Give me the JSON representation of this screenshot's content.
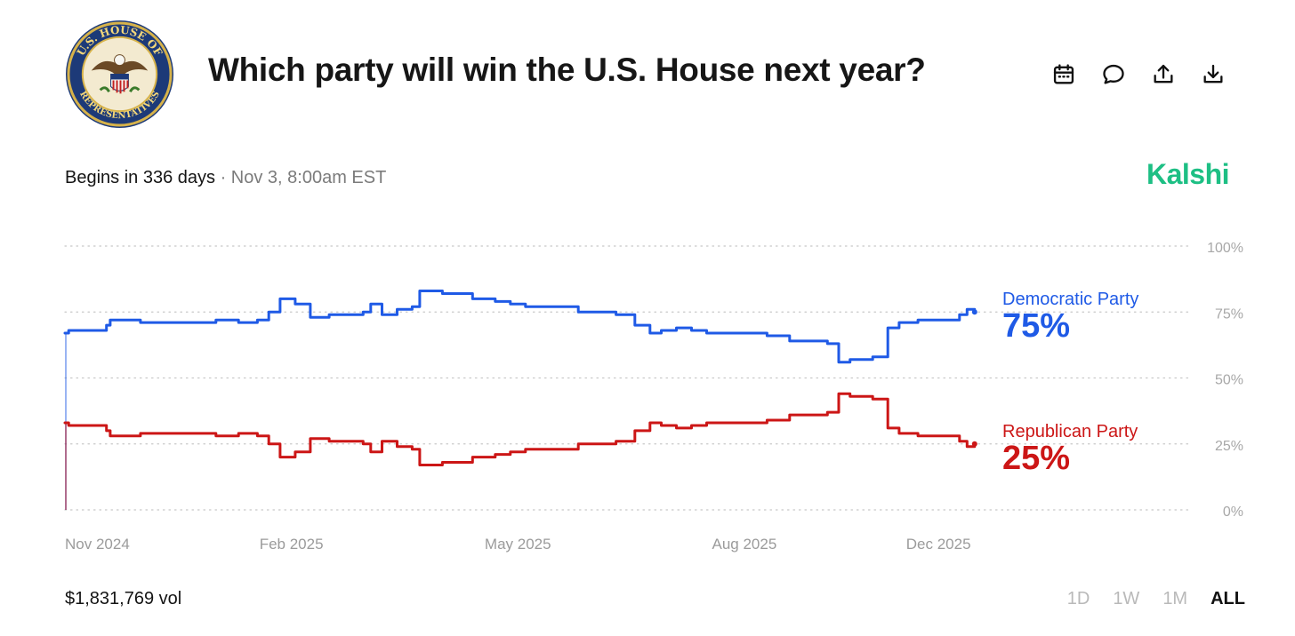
{
  "header": {
    "seal_text_top": "U.S. HOUSE OF",
    "seal_text_bottom": "REPRESENTATIVES",
    "title": "Which party will win the U.S. House next year?"
  },
  "actions": [
    {
      "icon": "calendar-icon"
    },
    {
      "icon": "comment-icon"
    },
    {
      "icon": "share-icon"
    },
    {
      "icon": "download-icon"
    }
  ],
  "subheader": {
    "begins": "Begins in 336 days",
    "separator": " · ",
    "date": "Nov 3, 8:00am EST"
  },
  "brand": "Kalshi",
  "footer": {
    "volume": "$1,831,769 vol",
    "ranges": [
      "1D",
      "1W",
      "1M",
      "ALL"
    ],
    "active_range": "ALL"
  },
  "colors": {
    "democratic": "#1f5ae6",
    "republican": "#cc1616",
    "brand": "#1dbf84",
    "grid": "#c8c8c8"
  },
  "chart_data": {
    "type": "line",
    "title": "Which party will win the U.S. House next year?",
    "xlabel": "",
    "ylabel": "",
    "ylim": [
      0,
      100
    ],
    "y_ticks": [
      "100%",
      "75%",
      "50%",
      "25%",
      "0%"
    ],
    "y_tick_values": [
      100,
      75,
      50,
      25,
      0
    ],
    "x_ticks": [
      "Nov 2024",
      "Feb 2025",
      "May 2025",
      "Aug 2025",
      "Dec 2025"
    ],
    "x_tick_values": [
      0,
      3,
      6,
      9,
      12
    ],
    "x_unit": "months since Nov 2024",
    "x_range": [
      0,
      12.3
    ],
    "series": [
      {
        "name": "Democratic Party",
        "label_value": "75%",
        "color": "#1f5ae6",
        "x": [
          0,
          0.05,
          0.3,
          0.55,
          0.6,
          1.0,
          1.5,
          2.0,
          2.3,
          2.55,
          2.7,
          2.85,
          3.05,
          3.25,
          3.5,
          3.75,
          3.95,
          4.05,
          4.2,
          4.4,
          4.6,
          4.7,
          5.0,
          5.4,
          5.7,
          5.9,
          6.1,
          6.5,
          6.8,
          7.0,
          7.3,
          7.55,
          7.75,
          7.9,
          8.1,
          8.3,
          8.5,
          8.8,
          9.0,
          9.3,
          9.6,
          9.9,
          10.1,
          10.25,
          10.4,
          10.5,
          10.7,
          10.9,
          11.05,
          11.3,
          11.6,
          11.85,
          11.95,
          12.05
        ],
        "y": [
          67,
          68,
          68,
          70,
          72,
          71,
          71,
          72,
          71,
          72,
          75,
          80,
          78,
          73,
          74,
          74,
          75,
          78,
          74,
          76,
          77,
          83,
          82,
          80,
          79,
          78,
          77,
          77,
          75,
          75,
          74,
          70,
          67,
          68,
          69,
          68,
          67,
          67,
          67,
          66,
          64,
          64,
          63,
          56,
          57,
          57,
          58,
          69,
          71,
          72,
          72,
          74,
          76,
          75
        ]
      },
      {
        "name": "Republican Party",
        "label_value": "25%",
        "color": "#cc1616",
        "x": [
          0,
          0.05,
          0.3,
          0.55,
          0.6,
          1.0,
          1.5,
          2.0,
          2.3,
          2.55,
          2.7,
          2.85,
          3.05,
          3.25,
          3.5,
          3.75,
          3.95,
          4.05,
          4.2,
          4.4,
          4.6,
          4.7,
          5.0,
          5.4,
          5.7,
          5.9,
          6.1,
          6.5,
          6.8,
          7.0,
          7.3,
          7.55,
          7.75,
          7.9,
          8.1,
          8.3,
          8.5,
          8.8,
          9.0,
          9.3,
          9.6,
          9.9,
          10.1,
          10.25,
          10.4,
          10.5,
          10.7,
          10.9,
          11.05,
          11.3,
          11.6,
          11.85,
          11.95,
          12.05
        ],
        "y": [
          33,
          32,
          32,
          30,
          28,
          29,
          29,
          28,
          29,
          28,
          25,
          20,
          22,
          27,
          26,
          26,
          25,
          22,
          26,
          24,
          23,
          17,
          18,
          20,
          21,
          22,
          23,
          23,
          25,
          25,
          26,
          30,
          33,
          32,
          31,
          32,
          33,
          33,
          33,
          34,
          36,
          36,
          37,
          44,
          43,
          43,
          42,
          31,
          29,
          28,
          28,
          26,
          24,
          25
        ]
      }
    ]
  }
}
